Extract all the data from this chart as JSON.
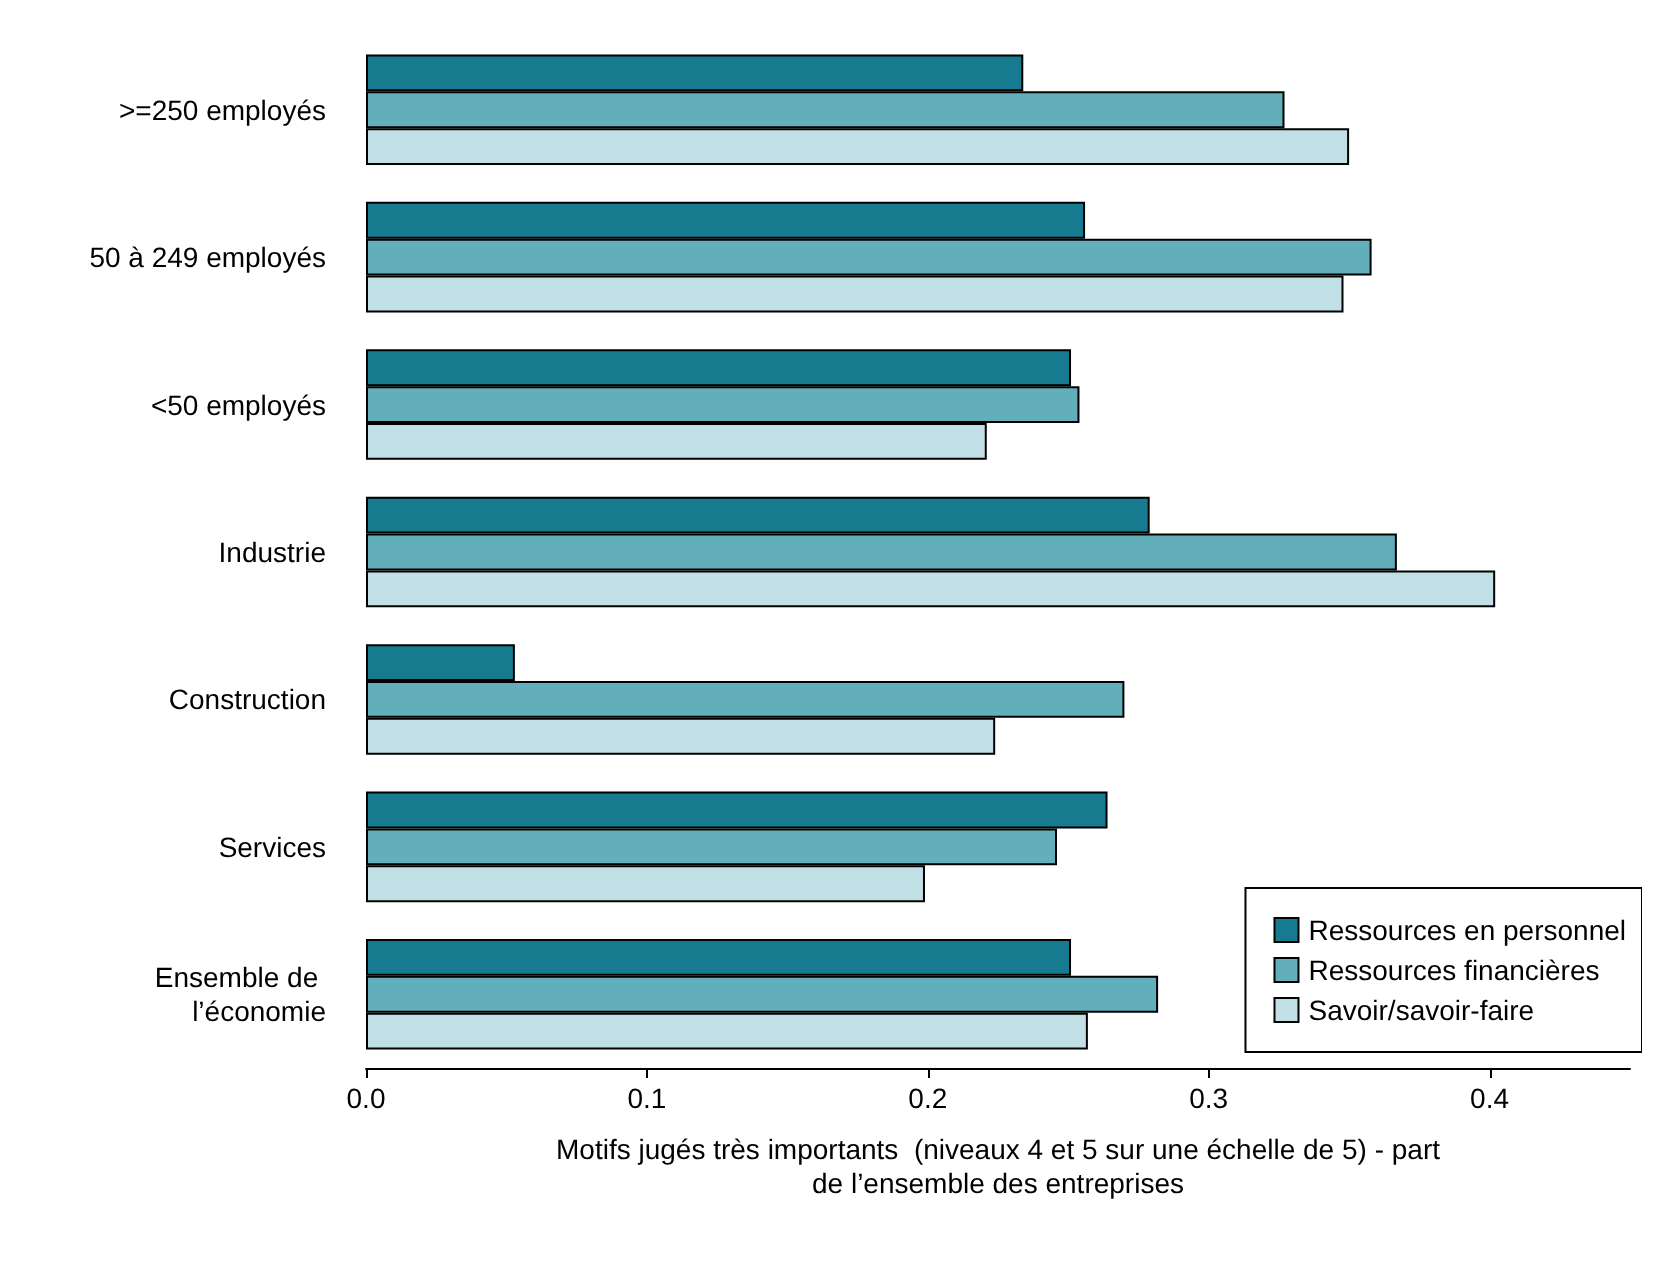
{
  "chart_data": {
    "type": "bar",
    "orientation": "horizontal",
    "xlabel": "Motifs jugés très importants  (niveaux 4 et 5 sur une échelle de 5) - part\nde l’ensemble des entreprises",
    "categories": [
      ">=250 employés",
      "50 à 249 employés",
      "<50 employés",
      "Industrie",
      "Construction",
      "Services",
      "Ensemble de \nl’économie"
    ],
    "series": [
      {
        "name": "Ressources en personnel",
        "color": "#167b8f",
        "values": [
          0.234,
          0.256,
          0.251,
          0.279,
          0.053,
          0.264,
          0.251
        ]
      },
      {
        "name": "Ressources financières",
        "color": "#62aeba",
        "values": [
          0.327,
          0.358,
          0.254,
          0.367,
          0.27,
          0.246,
          0.282
        ]
      },
      {
        "name": "Savoir/savoir-faire",
        "color": "#c1e0e5",
        "values": [
          0.35,
          0.348,
          0.221,
          0.402,
          0.224,
          0.199,
          0.257
        ]
      }
    ],
    "xlim": [
      0,
      0.45
    ],
    "xticks": [
      {
        "value": 0,
        "label": "0.0"
      },
      0.1,
      0.2,
      0.3,
      0.4
    ],
    "grid": false,
    "legend": "bottom right"
  }
}
